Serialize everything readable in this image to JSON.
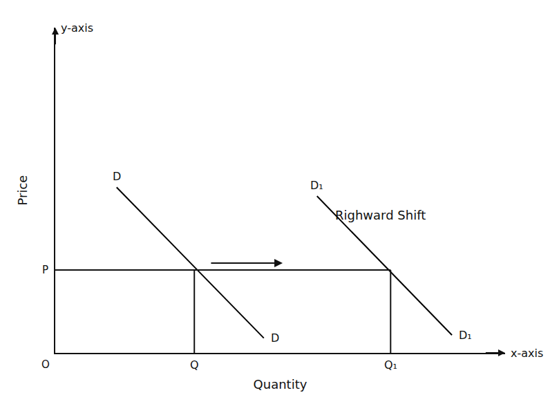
{
  "chart_data": {
    "type": "line",
    "x_label": "Quantity",
    "y_label": "Price",
    "axis_names": {
      "x": "x-axis",
      "y": "y-axis"
    },
    "origin_label": "O",
    "xlim": [
      0,
      11
    ],
    "ylim": [
      0,
      11
    ],
    "xticks": [],
    "yticks": [],
    "tick_labels": false,
    "grid": false,
    "series": [
      {
        "name": "D",
        "color": "#000000",
        "line_style": "solid",
        "x": [
          1.5,
          5.1
        ],
        "values": [
          5.6,
          0.5
        ]
      },
      {
        "name": "D₁",
        "color": "#000000",
        "line_style": "solid",
        "x": [
          6.4,
          9.7
        ],
        "values": [
          5.3,
          0.6
        ]
      }
    ],
    "price_level": {
      "label": "P",
      "value": 2.8
    },
    "quantities": [
      {
        "label": "Q",
        "value": 3.4
      },
      {
        "label": "Q₁",
        "value": 8.2
      }
    ],
    "shift_label": "Righward Shift"
  }
}
